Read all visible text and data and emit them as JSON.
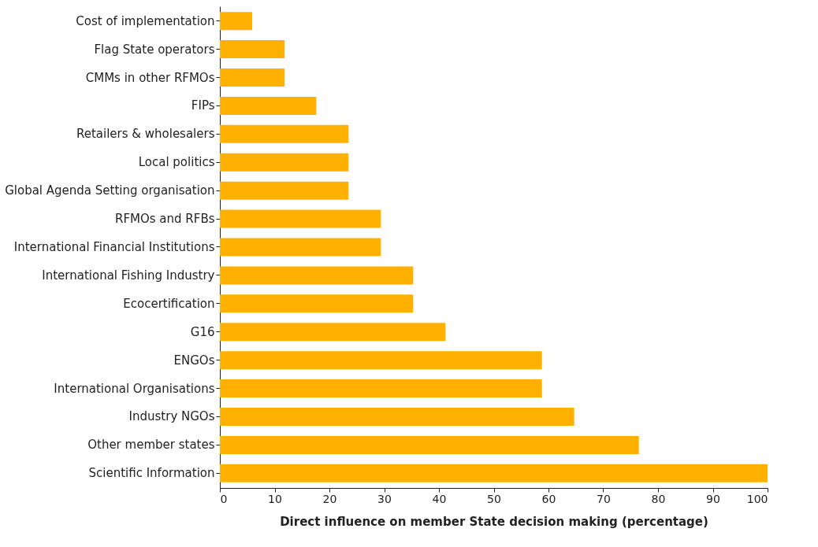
{
  "chart_data": {
    "type": "bar",
    "orientation": "horizontal",
    "xlabel": "Direct influence on member State decision making (percentage)",
    "categories": [
      "Cost of implementation",
      "Flag State operators",
      "CMMs in other RFMOs",
      "FIPs",
      "Retailers & wholesalers",
      "Local politics",
      "Global Agenda Setting organisation",
      "RFMOs and RFBs",
      "International Financial Institutions",
      "International Fishing Industry",
      "Ecocertification",
      "G16",
      "ENGOs",
      "International Organisations",
      "Industry NGOs",
      "Other member states",
      "Scientific Information"
    ],
    "values": [
      5.9,
      11.8,
      11.8,
      17.6,
      23.5,
      23.5,
      23.5,
      29.4,
      29.4,
      35.3,
      35.3,
      41.2,
      58.8,
      58.8,
      64.7,
      76.5,
      100
    ],
    "color": "#ffb000",
    "xlim": [
      0,
      100
    ],
    "xticks": [
      0,
      10,
      20,
      30,
      40,
      50,
      60,
      70,
      80,
      90,
      100
    ],
    "grid": false
  }
}
